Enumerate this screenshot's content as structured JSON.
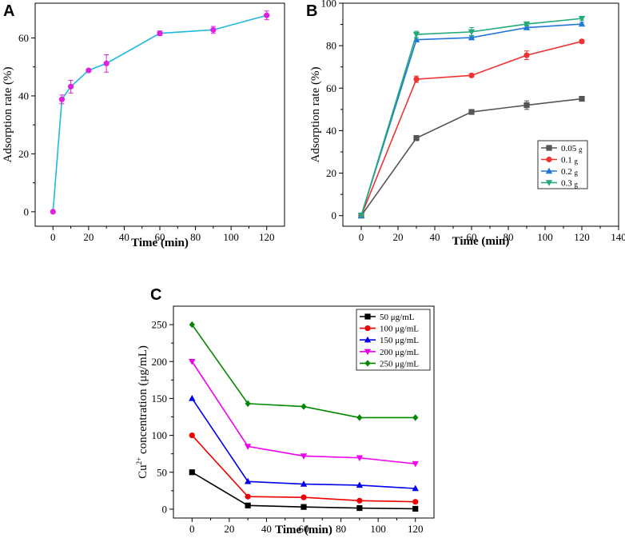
{
  "chart_data": [
    {
      "panel": "A",
      "type": "line",
      "xlabel": "Time (min)",
      "ylabel": "Adsorption rate (%)",
      "xlim": [
        -10,
        130
      ],
      "ylim": [
        -5,
        72
      ],
      "xticks": [
        "0",
        "20",
        "40",
        "60",
        "80",
        "100",
        "120"
      ],
      "yticks": [
        "0",
        "20",
        "40",
        "60"
      ],
      "series": [
        {
          "name": "adsorption",
          "color": "#e020e0",
          "line_color": "#1fb8e0",
          "marker": "circle",
          "x": [
            0,
            5,
            10,
            20,
            30,
            60,
            90,
            120
          ],
          "y": [
            0,
            38.8,
            43.2,
            48.8,
            51.2,
            61.6,
            62.8,
            67.8
          ],
          "err": [
            0,
            1.5,
            2.2,
            0.5,
            3,
            0.8,
            1.2,
            1.5
          ]
        }
      ]
    },
    {
      "panel": "B",
      "type": "line",
      "xlabel": "Time (min)",
      "ylabel": "Adsorption rate (%)",
      "xlim": [
        -10,
        140
      ],
      "ylim": [
        -5,
        100
      ],
      "xticks": [
        "0",
        "20",
        "40",
        "60",
        "80",
        "100",
        "120",
        "140"
      ],
      "yticks": [
        "0",
        "20",
        "40",
        "60",
        "80",
        "100"
      ],
      "legend_position": "right",
      "series": [
        {
          "name": "0.05",
          "unit": "g",
          "color": "#555555",
          "marker": "square",
          "x": [
            0,
            30,
            60,
            90,
            120
          ],
          "y": [
            0,
            36.5,
            48.8,
            52,
            55
          ],
          "err": [
            0,
            1.2,
            0.8,
            2,
            0.5
          ]
        },
        {
          "name": "0.1",
          "unit": "g",
          "color": "#ee3333",
          "marker": "circle",
          "x": [
            0,
            30,
            60,
            90,
            120
          ],
          "y": [
            0,
            64.2,
            66,
            75.5,
            82
          ],
          "err": [
            0,
            1.5,
            0.8,
            2,
            0.8
          ]
        },
        {
          "name": "0.2",
          "unit": "g",
          "color": "#2277dd",
          "marker": "triangle-up",
          "x": [
            0,
            30,
            60,
            90,
            120
          ],
          "y": [
            0,
            82.8,
            83.8,
            88.5,
            90.2
          ],
          "err": [
            0,
            1,
            1,
            1,
            0.8
          ]
        },
        {
          "name": "0.3",
          "unit": "g",
          "color": "#22aa77",
          "marker": "triangle-down",
          "x": [
            0,
            30,
            60,
            90,
            120
          ],
          "y": [
            0,
            85.3,
            86.5,
            90.2,
            92.8
          ],
          "err": [
            0,
            1.5,
            2,
            1,
            0.8
          ]
        }
      ]
    },
    {
      "panel": "C",
      "type": "line",
      "xlabel": "Time (min)",
      "ylabel_prefix": "Cu",
      "ylabel_sup": "2+",
      "ylabel_rest": " concentration (μg/mL)",
      "xlim": [
        -10,
        130
      ],
      "ylim": [
        -12,
        275
      ],
      "xticks": [
        "0",
        "20",
        "40",
        "60",
        "80",
        "100",
        "120"
      ],
      "yticks": [
        "0",
        "50",
        "100",
        "150",
        "200",
        "250"
      ],
      "legend_position": "top-right",
      "series": [
        {
          "name": "50 μg/mL",
          "color": "#000000",
          "marker": "square",
          "x": [
            0,
            30,
            60,
            90,
            120
          ],
          "y": [
            50,
            5,
            3,
            1.5,
            0.5
          ]
        },
        {
          "name": "100 μg/mL",
          "color": "#ee0000",
          "marker": "circle",
          "x": [
            0,
            30,
            60,
            90,
            120
          ],
          "y": [
            100,
            17,
            16,
            11.5,
            10
          ]
        },
        {
          "name": "150 μg/mL",
          "color": "#0000ee",
          "marker": "triangle-up",
          "x": [
            0,
            30,
            60,
            90,
            120
          ],
          "y": [
            150,
            37.5,
            34,
            32.5,
            28
          ]
        },
        {
          "name": "200 μg/mL",
          "color": "#ee00ee",
          "marker": "triangle-down",
          "x": [
            0,
            30,
            60,
            90,
            120
          ],
          "y": [
            200,
            85,
            72,
            69.5,
            61.5
          ]
        },
        {
          "name": "250 μg/mL",
          "color": "#008800",
          "marker": "diamond",
          "x": [
            0,
            30,
            60,
            90,
            120
          ],
          "y": [
            250,
            143,
            139,
            124,
            124
          ]
        }
      ]
    }
  ],
  "labels": {
    "panel_a": "A",
    "panel_b": "B",
    "panel_c": "C"
  }
}
